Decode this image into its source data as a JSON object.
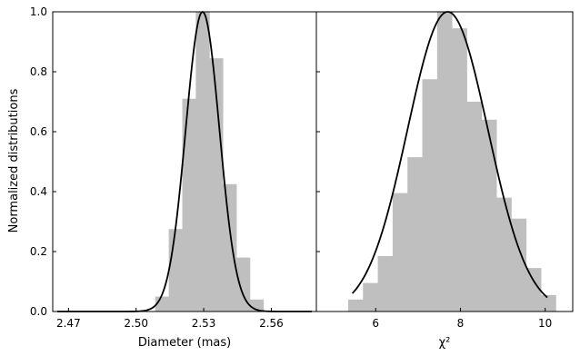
{
  "figure": {
    "ylabel": "Normalized distributions"
  },
  "chart_data": [
    {
      "type": "histogram",
      "xlabel": "Diameter (mas)",
      "ylabel": "Normalized distributions",
      "xlim": [
        2.463,
        2.58
      ],
      "ylim": [
        0,
        1.0
      ],
      "xticks": [
        2.47,
        2.5,
        2.53,
        2.56
      ],
      "xtick_labels": [
        "2.47",
        "2.50",
        "2.53",
        "2.56"
      ],
      "yticks": [
        0,
        0.2,
        0.4,
        0.6,
        0.8,
        1.0
      ],
      "ytick_labels": [
        "0.0",
        "0.2",
        "0.4",
        "0.6",
        "0.8",
        "1.0"
      ],
      "grid": false,
      "bar_color": "#bfbfbf",
      "curve_color": "#000000",
      "bins": [
        {
          "x0": 2.5085,
          "x1": 2.5145,
          "y": 0.05
        },
        {
          "x0": 2.5145,
          "x1": 2.5205,
          "y": 0.275
        },
        {
          "x0": 2.5205,
          "x1": 2.5265,
          "y": 0.71
        },
        {
          "x0": 2.5265,
          "x1": 2.5325,
          "y": 1.0
        },
        {
          "x0": 2.5325,
          "x1": 2.5385,
          "y": 0.845
        },
        {
          "x0": 2.5385,
          "x1": 2.5445,
          "y": 0.425
        },
        {
          "x0": 2.5445,
          "x1": 2.5505,
          "y": 0.18
        },
        {
          "x0": 2.5505,
          "x1": 2.5565,
          "y": 0.04
        }
      ],
      "fit": {
        "type": "gaussian",
        "mean": 2.5295,
        "sigma": 0.0075,
        "amplitude": 1.0,
        "x_range": [
          2.465,
          2.578
        ]
      }
    },
    {
      "type": "histogram",
      "xlabel": "χ²",
      "xlim": [
        4.6,
        10.65
      ],
      "ylim": [
        0,
        1.0
      ],
      "xticks": [
        6,
        8,
        10
      ],
      "xtick_labels": [
        "6",
        "8",
        "10"
      ],
      "yticks": [
        0,
        0.2,
        0.4,
        0.6,
        0.8,
        1.0
      ],
      "grid": false,
      "bar_color": "#bfbfbf",
      "curve_color": "#000000",
      "bins": [
        {
          "x0": 5.35,
          "x1": 5.7,
          "y": 0.04
        },
        {
          "x0": 5.7,
          "x1": 6.05,
          "y": 0.095
        },
        {
          "x0": 6.05,
          "x1": 6.4,
          "y": 0.185
        },
        {
          "x0": 6.4,
          "x1": 6.75,
          "y": 0.395
        },
        {
          "x0": 6.75,
          "x1": 7.1,
          "y": 0.515
        },
        {
          "x0": 7.1,
          "x1": 7.45,
          "y": 0.775
        },
        {
          "x0": 7.45,
          "x1": 7.8,
          "y": 1.0
        },
        {
          "x0": 7.8,
          "x1": 8.15,
          "y": 0.945
        },
        {
          "x0": 8.15,
          "x1": 8.5,
          "y": 0.7
        },
        {
          "x0": 8.5,
          "x1": 8.85,
          "y": 0.64
        },
        {
          "x0": 8.85,
          "x1": 9.2,
          "y": 0.38
        },
        {
          "x0": 9.2,
          "x1": 9.55,
          "y": 0.31
        },
        {
          "x0": 9.55,
          "x1": 9.9,
          "y": 0.145
        },
        {
          "x0": 9.9,
          "x1": 10.25,
          "y": 0.055
        }
      ],
      "fit": {
        "type": "gaussian",
        "mean": 7.7,
        "sigma": 0.95,
        "amplitude": 1.0,
        "x_range": [
          5.45,
          10.05
        ]
      }
    }
  ]
}
